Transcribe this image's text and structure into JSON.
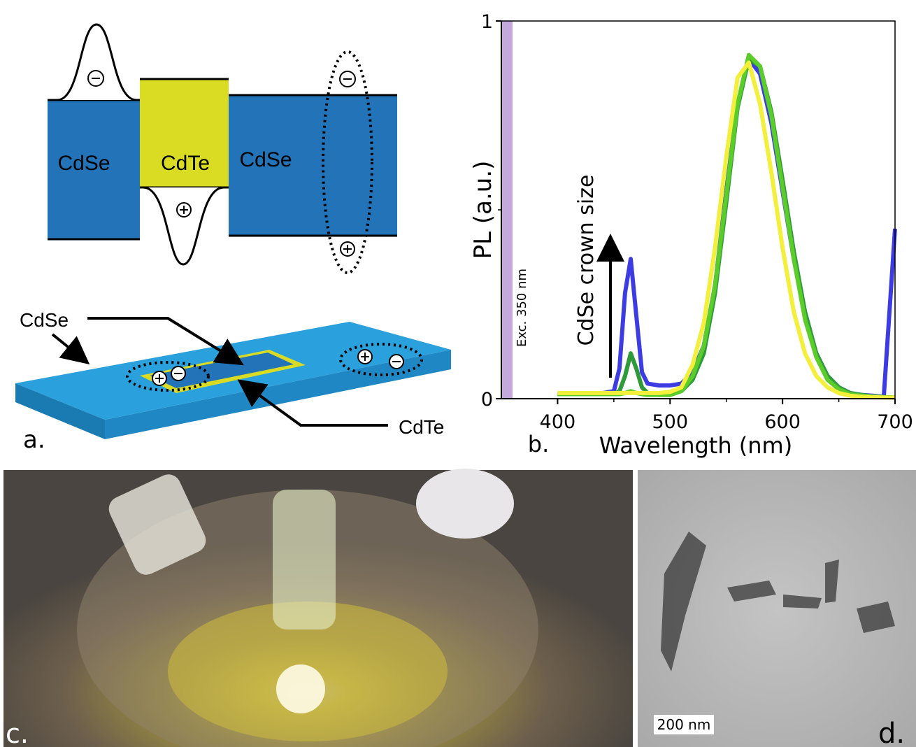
{
  "panel_a": {
    "band_labels": [
      "CdSe",
      "CdTe",
      "CdSe"
    ],
    "crown_label": "CdSe",
    "core_label": "CdTe",
    "panel_label": "a."
  },
  "chart_data": {
    "type": "line",
    "x_label": "Wavelength (nm)",
    "y_label": "PL (a.u.)",
    "annotation": "CdSe crown size",
    "panel_label": "b.",
    "excitation": {
      "label": "Exc. 350 nm",
      "xlim": [
        350,
        360
      ],
      "color": "#c3a9dc"
    },
    "x": [
      400,
      410,
      420,
      430,
      440,
      450,
      455,
      460,
      465,
      470,
      475,
      480,
      490,
      500,
      510,
      520,
      530,
      540,
      550,
      560,
      570,
      580,
      590,
      600,
      610,
      620,
      630,
      640,
      650,
      660,
      670,
      680,
      690,
      700
    ],
    "series": [
      {
        "color": "#3c3ce2",
        "values": [
          0.012,
          0.012,
          0.012,
          0.013,
          0.015,
          0.02,
          0.08,
          0.28,
          0.37,
          0.22,
          0.07,
          0.04,
          0.035,
          0.035,
          0.04,
          0.07,
          0.14,
          0.3,
          0.55,
          0.78,
          0.9,
          0.86,
          0.73,
          0.55,
          0.37,
          0.22,
          0.12,
          0.06,
          0.03,
          0.015,
          0.01,
          0.008,
          0.005,
          0.45
        ]
      },
      {
        "color": "#2e9a3a",
        "values": [
          0.012,
          0.012,
          0.012,
          0.012,
          0.012,
          0.013,
          0.02,
          0.06,
          0.12,
          0.08,
          0.03,
          0.015,
          0.01,
          0.01,
          0.02,
          0.05,
          0.12,
          0.28,
          0.52,
          0.77,
          0.9,
          0.88,
          0.76,
          0.58,
          0.39,
          0.23,
          0.12,
          0.06,
          0.03,
          0.015,
          0.01,
          0.006,
          0.004,
          0.003
        ]
      },
      {
        "color": "#5ccc2a",
        "values": [
          0.012,
          0.012,
          0.012,
          0.012,
          0.012,
          0.012,
          0.012,
          0.015,
          0.02,
          0.015,
          0.012,
          0.01,
          0.01,
          0.01,
          0.02,
          0.06,
          0.14,
          0.3,
          0.54,
          0.78,
          0.91,
          0.88,
          0.75,
          0.56,
          0.37,
          0.21,
          0.11,
          0.05,
          0.025,
          0.012,
          0.008,
          0.006,
          0.004,
          0.003
        ]
      },
      {
        "color": "#f2f03c",
        "values": [
          0.015,
          0.015,
          0.015,
          0.015,
          0.015,
          0.015,
          0.015,
          0.015,
          0.015,
          0.015,
          0.015,
          0.015,
          0.015,
          0.018,
          0.03,
          0.09,
          0.2,
          0.4,
          0.64,
          0.85,
          0.89,
          0.78,
          0.6,
          0.4,
          0.23,
          0.12,
          0.06,
          0.03,
          0.015,
          0.008,
          0.005,
          0.004,
          0.003,
          0.003
        ]
      }
    ],
    "xlim": [
      350,
      700
    ],
    "ylim": [
      0,
      1
    ],
    "xticks": [
      400,
      500,
      600,
      700
    ],
    "yticks": [
      0,
      1
    ],
    "x_minor_ticks": [
      450,
      550,
      650
    ],
    "y_minor_ticks": [
      0.5
    ]
  },
  "panel_c": {
    "panel_label": "c."
  },
  "panel_d": {
    "scale_bar": "200 nm",
    "panel_label": "d."
  }
}
